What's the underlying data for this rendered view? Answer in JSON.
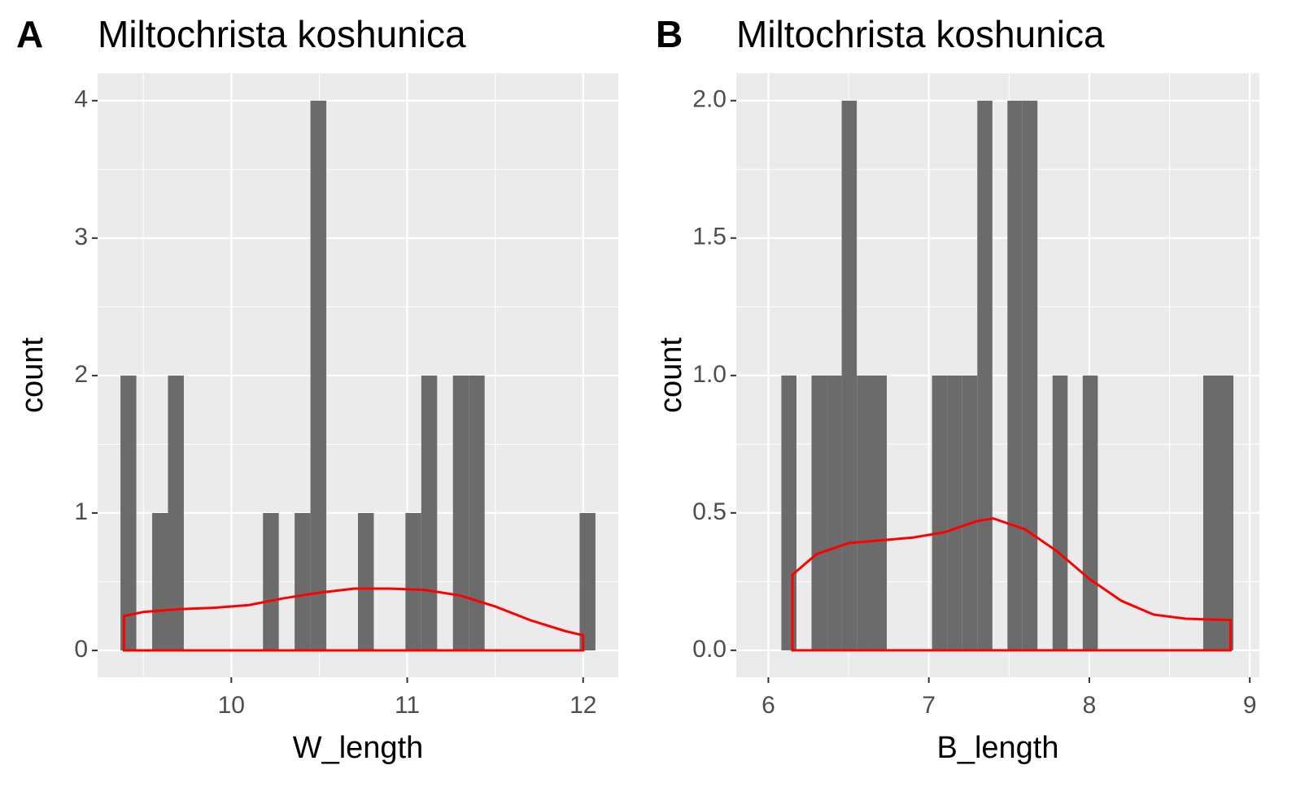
{
  "chart_data": [
    {
      "type": "histogram",
      "panel_label": "A",
      "title": "Miltochrista koshunica",
      "x_label": "W_length",
      "y_label": "count",
      "bins": [
        9.37,
        9.46,
        9.55,
        9.64,
        9.73,
        9.82,
        9.91,
        10.0,
        10.09,
        10.18,
        10.27,
        10.36,
        10.45,
        10.54,
        10.63,
        10.72,
        10.81,
        10.9,
        10.99,
        11.08,
        11.17,
        11.26,
        11.35,
        11.44,
        11.53,
        11.62,
        11.71,
        11.8,
        11.89,
        11.98,
        12.07
      ],
      "counts": [
        2,
        0,
        1,
        2,
        0,
        0,
        0,
        0,
        0,
        1,
        0,
        1,
        4,
        0,
        0,
        1,
        0,
        0,
        1,
        2,
        0,
        2,
        2,
        0,
        0,
        0,
        0,
        0,
        0,
        1
      ],
      "color": "#6b6b6b",
      "density": {
        "x": [
          9.39,
          9.5,
          9.7,
          9.9,
          10.1,
          10.3,
          10.5,
          10.7,
          10.9,
          11.1,
          11.3,
          11.5,
          11.7,
          11.9,
          12.0
        ],
        "y": [
          0.25,
          0.28,
          0.3,
          0.31,
          0.33,
          0.38,
          0.42,
          0.45,
          0.45,
          0.44,
          0.4,
          0.32,
          0.22,
          0.14,
          0.11
        ],
        "color": "#ff0000"
      },
      "xlim": [
        9.24,
        12.2
      ],
      "ylim": [
        -0.195,
        4.2
      ],
      "xticks": [
        10,
        11,
        12
      ],
      "yticks": [
        0,
        1,
        2,
        3,
        4
      ],
      "grid": true
    },
    {
      "type": "histogram",
      "panel_label": "B",
      "title": "Miltochrista koshunica",
      "x_label": "B_length",
      "y_label": "count",
      "bins": [
        6.081,
        6.175,
        6.269,
        6.363,
        6.457,
        6.551,
        6.644,
        6.738,
        6.832,
        6.926,
        7.02,
        7.114,
        7.208,
        7.302,
        7.396,
        7.49,
        7.583,
        7.677,
        7.771,
        7.865,
        7.959,
        8.053,
        8.147,
        8.241,
        8.335,
        8.429,
        8.522,
        8.616,
        8.71,
        8.804,
        8.898
      ],
      "counts": [
        1,
        0,
        1,
        1,
        2,
        1,
        1,
        0,
        0,
        0,
        1,
        1,
        1,
        2,
        0,
        2,
        2,
        0,
        1,
        0,
        1,
        0,
        0,
        0,
        0,
        0,
        0,
        0,
        1,
        1
      ],
      "color": "#6b6b6b",
      "density": {
        "x": [
          6.15,
          6.3,
          6.5,
          6.7,
          6.9,
          7.1,
          7.3,
          7.4,
          7.6,
          7.8,
          8.0,
          8.2,
          8.4,
          8.6,
          8.88
        ],
        "y": [
          0.275,
          0.35,
          0.39,
          0.4,
          0.41,
          0.43,
          0.47,
          0.48,
          0.44,
          0.36,
          0.26,
          0.18,
          0.13,
          0.115,
          0.11
        ],
        "color": "#ff0000"
      },
      "xlim": [
        5.8,
        9.06
      ],
      "ylim": [
        -0.098,
        2.1
      ],
      "xticks": [
        6,
        7,
        8,
        9
      ],
      "yticks": [
        {
          "value": 0,
          "label": "0.0"
        },
        0.5,
        {
          "value": 1,
          "label": "1.0"
        },
        1.5,
        {
          "value": 2,
          "label": "2.0"
        }
      ],
      "grid": true
    }
  ]
}
